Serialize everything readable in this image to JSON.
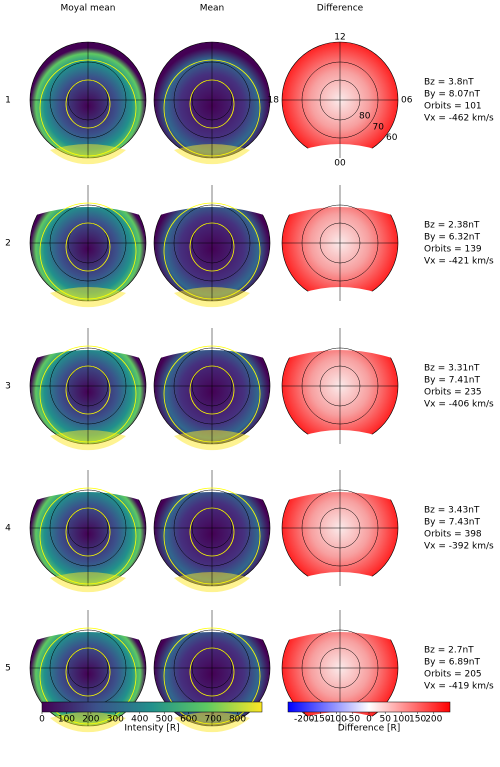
{
  "columns": [
    "Moyal mean",
    "Mean",
    "Difference"
  ],
  "rows": [
    {
      "label": "1",
      "params": [
        "Bz = 3.8nT",
        "By = 8.07nT",
        "Orbits = 101",
        "Vx = -462 km/s"
      ]
    },
    {
      "label": "2",
      "params": [
        "Bz = 2.38nT",
        "By = 6.32nT",
        "Orbits = 139",
        "Vx = -421 km/s"
      ]
    },
    {
      "label": "3",
      "params": [
        "Bz = 3.31nT",
        "By = 7.41nT",
        "Orbits = 235",
        "Vx = -406 km/s"
      ]
    },
    {
      "label": "4",
      "params": [
        "Bz = 3.43nT",
        "By = 7.43nT",
        "Orbits = 398",
        "Vx = -392 km/s"
      ]
    },
    {
      "label": "5",
      "params": [
        "Bz = 2.7nT",
        "By = 6.89nT",
        "Orbits = 205",
        "Vx = -419 km/s"
      ]
    }
  ],
  "polar_labels": {
    "top": "12",
    "left": "18",
    "right": "06",
    "bottom": "00",
    "rings": [
      "80",
      "70",
      "60"
    ]
  },
  "colorbars": [
    {
      "label": "Intensity [R]",
      "lim": [
        0,
        900
      ],
      "ticks": [
        0,
        100,
        200,
        300,
        400,
        500,
        600,
        700,
        800
      ]
    },
    {
      "label": "Difference [R]",
      "lim": [
        -250,
        250
      ],
      "ticks": [
        -200,
        -150,
        -100,
        -50,
        0,
        50,
        100,
        150,
        200
      ]
    }
  ]
}
